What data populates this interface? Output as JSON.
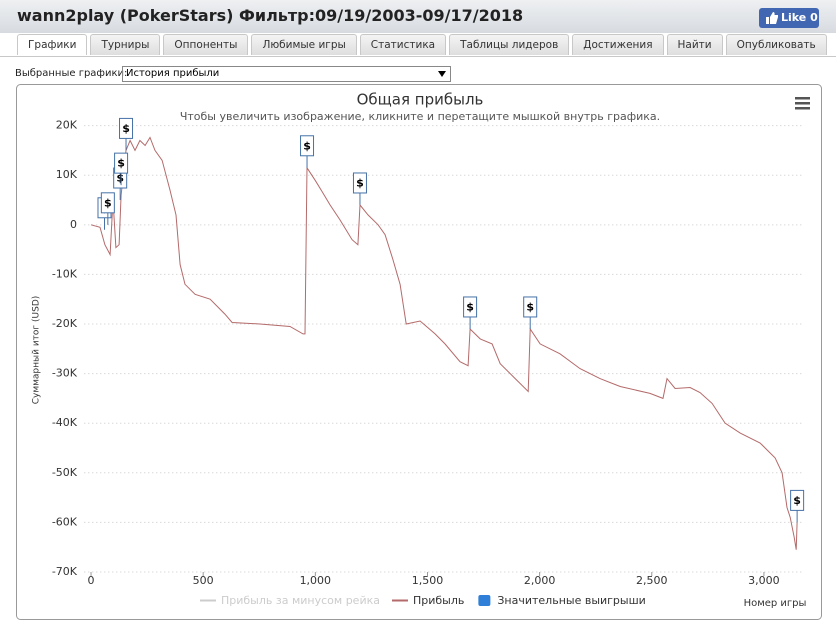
{
  "header": {
    "title": "wann2play (PokerStars) Фильтр:09/19/2003-09/17/2018",
    "like": "Like 0"
  },
  "tabs": [
    "Графики",
    "Турниры",
    "Оппоненты",
    "Любимые игры",
    "Статистика",
    "Таблицы лидеров",
    "Достижения",
    "Найти",
    "Опубликовать"
  ],
  "selector": {
    "label": "Выбранные графики:",
    "value": "История прибыли"
  },
  "chart_data": {
    "type": "line",
    "title": "Общая прибыль",
    "subtitle": "Чтобы увеличить изображение, кликните и перетащите мышкой внутрь графика.",
    "xlabel": "Номер игры",
    "ylabel": "Суммарный итог (USD)",
    "xlim": [
      -30,
      3180
    ],
    "ylim": [
      -70000,
      22000
    ],
    "xticks": [
      0,
      500,
      {
        "value": 1000,
        "label": "1,000"
      },
      {
        "value": 1500,
        "label": "1,500"
      },
      {
        "value": 2000,
        "label": "2,000"
      },
      {
        "value": 2500,
        "label": "2,500"
      },
      {
        "value": 3000,
        "label": "3,000"
      }
    ],
    "yticks": [
      {
        "value": 20000,
        "label": "20K"
      },
      {
        "value": 10000,
        "label": "10K"
      },
      0,
      {
        "value": -10000,
        "label": "-10K"
      },
      {
        "value": -20000,
        "label": "-20K"
      },
      {
        "value": -30000,
        "label": "-30K"
      },
      {
        "value": -40000,
        "label": "-40K"
      },
      {
        "value": -50000,
        "label": "-50K"
      },
      {
        "value": -60000,
        "label": "-60K"
      },
      {
        "value": -70000,
        "label": "-70K"
      }
    ],
    "grid": true,
    "series": [
      {
        "name": "Прибыль за минусом рейка",
        "color": "#cccccc",
        "hidden": true
      },
      {
        "name": "Прибыль",
        "color": "#b46a6a",
        "x": [
          0,
          40,
          62,
          85,
          98,
          111,
          125,
          134,
          156,
          174,
          196,
          218,
          241,
          263,
          285,
          317,
          352,
          379,
          397,
          419,
          464,
          531,
          597,
          629,
          753,
          887,
          945,
          954,
          963,
          999,
          1030,
          1066,
          1110,
          1164,
          1190,
          1199,
          1235,
          1280,
          1311,
          1346,
          1378,
          1405,
          1467,
          1534,
          1578,
          1645,
          1681,
          1690,
          1735,
          1788,
          1824,
          1891,
          1949,
          1958,
          2002,
          2091,
          2180,
          2269,
          2359,
          2492,
          2550,
          2568,
          2604,
          2671,
          2715,
          2769,
          2827,
          2894,
          2983,
          3050,
          3081,
          3103,
          3117,
          3135,
          3144,
          3148
        ],
        "values": [
          0,
          -500,
          -4000,
          -6000,
          5000,
          -4600,
          -4000,
          6000,
          15000,
          17000,
          15000,
          17000,
          16000,
          17600,
          15000,
          13000,
          7000,
          2000,
          -8000,
          -12000,
          -14000,
          -15000,
          -18000,
          -19700,
          -20000,
          -20500,
          -22000,
          -22000,
          11500,
          9000,
          6700,
          4000,
          1000,
          -3000,
          -4000,
          4000,
          2000,
          0,
          -2000,
          -7000,
          -12000,
          -20000,
          -19400,
          -22000,
          -24000,
          -27600,
          -28400,
          -21000,
          -23000,
          -24000,
          -28000,
          -31000,
          -33600,
          -21000,
          -24000,
          -26000,
          -29000,
          -31000,
          -32600,
          -34000,
          -35000,
          -31000,
          -33000,
          -32800,
          -33800,
          -36000,
          -40000,
          -42000,
          -44000,
          -47000,
          -50000,
          -57000,
          -59000,
          -63000,
          -65500,
          -60000
        ]
      },
      {
        "name": "Значительные выигрыши",
        "color": "#2f7ed8",
        "type": "flags",
        "label": "$",
        "x": [
          60,
          75,
          130,
          134,
          156,
          963,
          1199,
          1690,
          1958,
          3148
        ],
        "values": [
          -1000,
          0,
          5000,
          8000,
          15000,
          11500,
          4000,
          -21000,
          -21000,
          -60000
        ]
      }
    ]
  }
}
